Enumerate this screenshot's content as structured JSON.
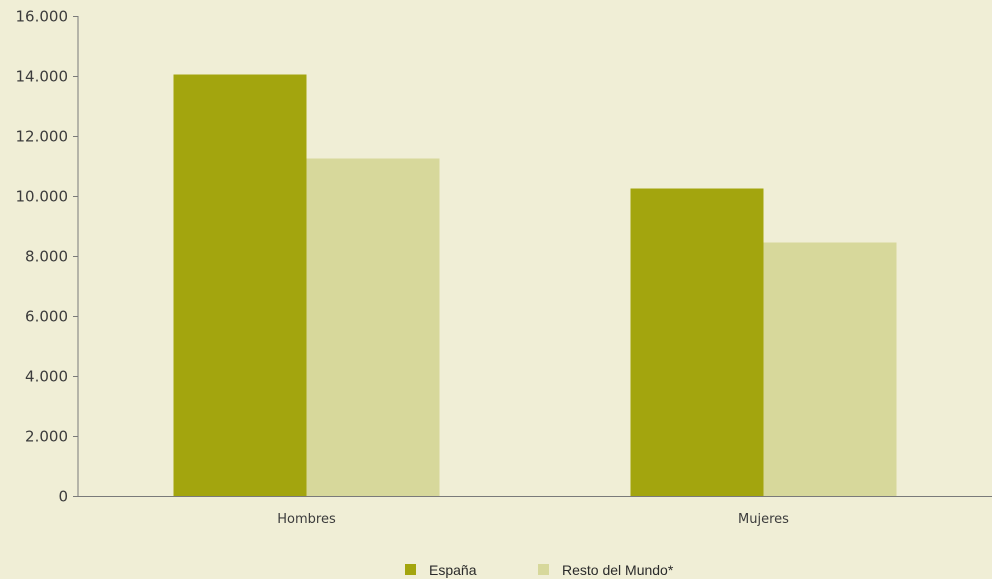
{
  "chart_data": {
    "type": "bar",
    "categories": [
      "Hombres",
      "Mujeres"
    ],
    "series": [
      {
        "name": "España",
        "values": [
          14050,
          10250
        ],
        "color": "#a3a50e"
      },
      {
        "name": "Resto del Mundo*",
        "values": [
          11250,
          8450
        ],
        "color": "#d7d89b"
      }
    ],
    "ylim": [
      0,
      16000
    ],
    "yticks": [
      0,
      2000,
      4000,
      6000,
      8000,
      10000,
      12000,
      14000,
      16000
    ],
    "ytick_labels": [
      "0",
      "2.000",
      "4.000",
      "6.000",
      "8.000",
      "10.000",
      "12.000",
      "14.000",
      "16.000"
    ],
    "grid": false,
    "legend_position": "bottom-center",
    "title": "",
    "xlabel": "",
    "ylabel": ""
  },
  "colors": {
    "background": "#f0eed6",
    "axis": "#7a7a7a",
    "text": "#3c3c3c"
  }
}
